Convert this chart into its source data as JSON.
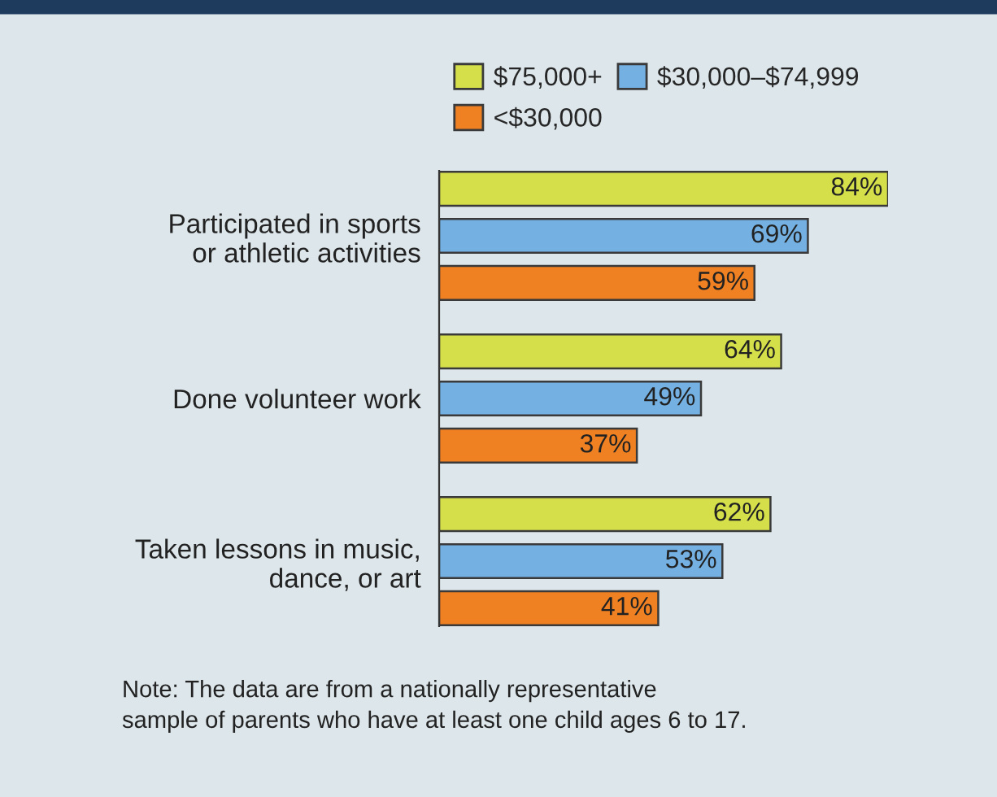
{
  "chart_data": {
    "type": "bar",
    "orientation": "horizontal",
    "categories": [
      "Participated in sports\nor athletic activities",
      "Done volunteer work",
      "Taken lessons in music,\ndance, or art"
    ],
    "series": [
      {
        "name": "$75,000+",
        "color": "#d4df4a",
        "values": [
          84,
          64,
          62
        ],
        "value_labels": [
          "84%",
          "64%",
          "62%"
        ]
      },
      {
        "name": "$30,000–$74,999",
        "color": "#74b1e2",
        "values": [
          69,
          49,
          53
        ],
        "value_labels": [
          "69%",
          "49%",
          "53%"
        ]
      },
      {
        "name": "<$30,000",
        "color": "#f08122",
        "values": [
          59,
          37,
          41
        ],
        "value_labels": [
          "59%",
          "37%",
          "41%"
        ]
      }
    ],
    "legend": "top",
    "grid": false,
    "annotations": [
      "Note: The data are from a nationally representative\nsample of parents who have at least one child ages 6 to 17."
    ]
  }
}
